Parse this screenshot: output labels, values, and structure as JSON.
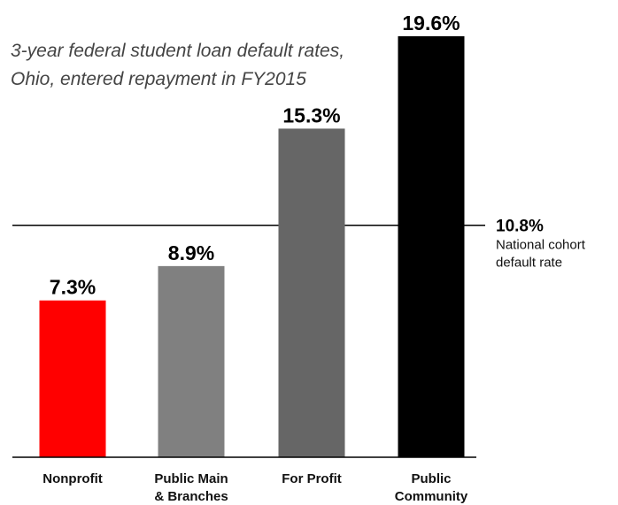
{
  "chart_data": {
    "type": "bar",
    "title_lines": [
      "3-year federal student loan default rates,",
      "Ohio, entered repayment in FY2015"
    ],
    "categories": [
      [
        "Nonprofit"
      ],
      [
        "Public Main",
        "& Branches"
      ],
      [
        "For Profit"
      ],
      [
        "Public",
        "Community"
      ]
    ],
    "values": [
      7.3,
      8.9,
      15.3,
      19.6
    ],
    "value_labels": [
      "7.3%",
      "8.9%",
      "15.3%",
      "19.6%"
    ],
    "bar_colors": [
      "#ff0000",
      "#808080",
      "#666666",
      "#000000"
    ],
    "ylim": [
      0,
      19.6
    ],
    "grid": false,
    "reference_line": {
      "value": 10.8,
      "value_label": "10.8%",
      "label_lines": [
        "National cohort",
        "default rate"
      ],
      "color": "#000000"
    }
  }
}
